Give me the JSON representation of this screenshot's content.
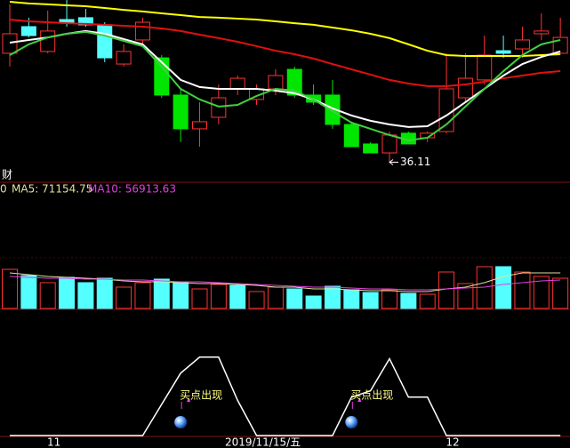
{
  "chart_data": [
    {
      "type": "candlestick",
      "ylim": [
        35.5,
        45
      ],
      "open": [
        42.08,
        43.54,
        42.18,
        43.93,
        44.03,
        43.64,
        41.49,
        42.81,
        41.83,
        39.79,
        37.94,
        38.57,
        40.13,
        39.55,
        40.13,
        41.2,
        39.79,
        39.79,
        38.18,
        37.11,
        36.62,
        37.7,
        37.45,
        37.79,
        39.64,
        40.62,
        42.22,
        42.32,
        43.15,
        42.08
      ],
      "close": [
        43.15,
        43.05,
        43.3,
        43.73,
        43.64,
        41.83,
        42.18,
        43.78,
        39.79,
        37.94,
        38.33,
        39.64,
        40.71,
        40.13,
        40.86,
        39.79,
        39.4,
        38.18,
        36.96,
        36.62,
        37.6,
        37.11,
        37.7,
        40.13,
        40.71,
        41.98,
        42.08,
        42.81,
        43.3,
        42.95
      ],
      "high": [
        44.76,
        44.03,
        44.42,
        45.0,
        44.51,
        43.78,
        42.57,
        44.03,
        41.98,
        40.13,
        39.4,
        40.37,
        40.86,
        40.37,
        41.2,
        41.35,
        40.37,
        40.62,
        38.33,
        37.21,
        37.79,
        37.79,
        37.79,
        42.08,
        42.08,
        43.05,
        43.05,
        43.54,
        44.27,
        44.03
      ],
      "low": [
        41.35,
        42.95,
        42.08,
        43.54,
        43.54,
        41.59,
        41.35,
        42.57,
        39.64,
        37.21,
        36.96,
        38.18,
        39.79,
        39.25,
        39.79,
        39.64,
        39.25,
        37.94,
        36.96,
        36.62,
        36.11,
        37.11,
        37.21,
        37.7,
        39.4,
        40.37,
        41.83,
        41.83,
        42.81,
        42.08
      ],
      "colors": [
        "#ff3333",
        "#54ffff",
        "#ff3333",
        "#54ffff",
        "#54ffff",
        "#54ffff",
        "#ff3333",
        "#ff3333",
        "#00e600",
        "#00e600",
        "#ff3333",
        "#ff3333",
        "#ff3333",
        "#ff3333",
        "#ff3333",
        "#00e600",
        "#00e600",
        "#00e600",
        "#00e600",
        "#00e600",
        "#ff3333",
        "#00e600",
        "#ff3333",
        "#ff3333",
        "#ff3333",
        "#ff3333",
        "#54ffff",
        "#ff3333",
        "#ff3333",
        "#ff3333"
      ],
      "lines": [
        {
          "color": "#ffff00",
          "values": [
            44.9,
            44.81,
            44.76,
            44.71,
            44.66,
            44.56,
            44.46,
            44.37,
            44.27,
            44.17,
            44.07,
            44.03,
            43.98,
            43.93,
            43.83,
            43.73,
            43.64,
            43.49,
            43.34,
            43.15,
            42.91,
            42.57,
            42.22,
            41.98,
            41.93,
            41.93,
            41.93,
            41.93,
            41.98,
            42.03
          ]
        },
        {
          "color": "#e01010",
          "values": [
            43.93,
            43.83,
            43.78,
            43.73,
            43.69,
            43.64,
            43.59,
            43.54,
            43.44,
            43.3,
            43.1,
            42.91,
            42.71,
            42.47,
            42.22,
            42.03,
            41.79,
            41.49,
            41.2,
            40.91,
            40.62,
            40.42,
            40.28,
            40.28,
            40.37,
            40.52,
            40.71,
            40.86,
            41.01,
            41.1
          ]
        },
        {
          "color": "#ffffff",
          "values": [
            42.66,
            42.81,
            42.95,
            43.15,
            43.3,
            43.15,
            42.86,
            42.57,
            41.59,
            40.62,
            40.23,
            40.13,
            40.13,
            40.13,
            40.03,
            39.89,
            39.55,
            39.06,
            38.67,
            38.38,
            38.18,
            38.04,
            38.08,
            38.67,
            39.4,
            40.13,
            40.86,
            41.49,
            41.88,
            42.18
          ]
        },
        {
          "color": "#40d040",
          "values": [
            41.98,
            42.57,
            42.95,
            43.15,
            43.25,
            43.05,
            42.76,
            42.47,
            41.35,
            40.13,
            39.55,
            39.16,
            39.25,
            39.74,
            40.13,
            40.03,
            39.55,
            38.91,
            38.28,
            37.94,
            37.6,
            37.31,
            37.45,
            38.18,
            39.16,
            40.13,
            41.1,
            41.98,
            42.57,
            42.81
          ]
        }
      ],
      "annotation": {
        "index": 20,
        "value": 36.11
      },
      "label": "财"
    },
    {
      "type": "bar",
      "title": "0",
      "ylim": [
        0,
        252760
      ],
      "values": [
        78320,
        65860,
        51620,
        62300,
        51620,
        60520,
        42720,
        51620,
        58740,
        53400,
        39160,
        48060,
        46280,
        33820,
        42720,
        39160,
        24920,
        44500,
        37380,
        32040,
        37380,
        30260,
        28480,
        72980,
        49840,
        83660,
        83660,
        72980,
        64080,
        60520
      ],
      "colors": [
        "#ff3333",
        "#54ffff",
        "#ff3333",
        "#54ffff",
        "#54ffff",
        "#54ffff",
        "#ff3333",
        "#ff3333",
        "#54ffff",
        "#54ffff",
        "#ff3333",
        "#ff3333",
        "#54ffff",
        "#ff3333",
        "#ff3333",
        "#54ffff",
        "#54ffff",
        "#54ffff",
        "#54ffff",
        "#54ffff",
        "#ff3333",
        "#54ffff",
        "#ff3333",
        "#ff3333",
        "#ff3333",
        "#ff3333",
        "#54ffff",
        "#ff3333",
        "#ff3333",
        "#ff3333"
      ],
      "series": [
        {
          "name": "MA5: 71154.75",
          "color": "#e0e0a0",
          "values": [
            71200,
            67640,
            64080,
            62300,
            60520,
            58740,
            55180,
            53400,
            53400,
            51620,
            49840,
            49840,
            48060,
            46280,
            42720,
            42720,
            39160,
            39160,
            37380,
            35600,
            35600,
            33820,
            33820,
            39160,
            42720,
            51620,
            64080,
            71200,
            71200,
            71154.75
          ]
        },
        {
          "name": "MA10: 56913.63",
          "color": "#e040e0",
          "values": [
            64080,
            62300,
            60520,
            60520,
            58740,
            58740,
            56960,
            56960,
            55180,
            53400,
            53400,
            51620,
            49840,
            48060,
            46280,
            44500,
            42720,
            42720,
            40940,
            39160,
            39160,
            37380,
            37380,
            39160,
            40940,
            42720,
            48060,
            51620,
            55180,
            56913.63
          ]
        }
      ]
    },
    {
      "type": "line",
      "ylim": [
        0,
        100
      ],
      "color": "#ffffff",
      "values": [
        0,
        0,
        0,
        0,
        0,
        0,
        0,
        0,
        39,
        78,
        98,
        98,
        44,
        0,
        0,
        0,
        0,
        0,
        48,
        56,
        96,
        48,
        48,
        0,
        0,
        0,
        0,
        0,
        0,
        0
      ],
      "signals": [
        {
          "index": 9,
          "label": "买点出现"
        },
        {
          "index": 18,
          "label": "买点出现"
        }
      ],
      "x_labels": [
        {
          "index": 2,
          "label": "11"
        },
        {
          "index": 13,
          "label": "2019/11/15/五"
        },
        {
          "index": 23,
          "label": "12"
        }
      ]
    }
  ]
}
